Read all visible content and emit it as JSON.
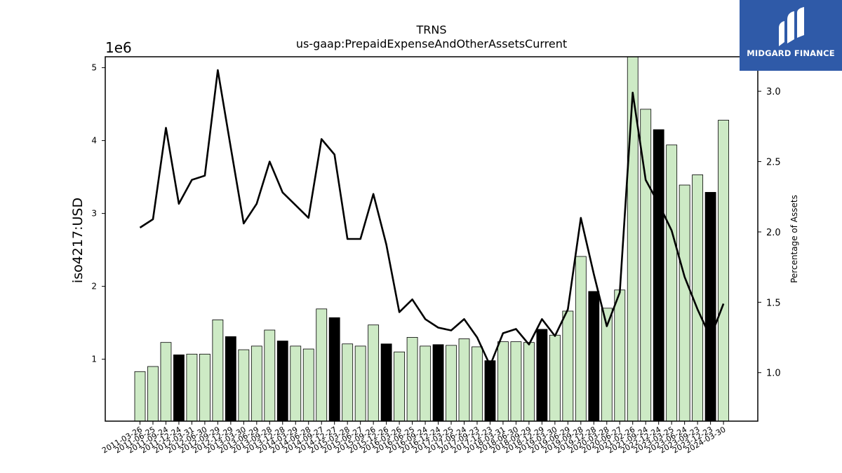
{
  "chart_data": {
    "type": "bar",
    "title": "TRNS",
    "subtitle": "us-gaap:PrepaidExpenseAndOtherAssetsCurrent",
    "ylabel": "iso4217:USD",
    "y_offset_label": "1e6",
    "y2label": "Percentage of Assets",
    "ylim": [
      150000,
      5150000
    ],
    "y2lim": [
      0.655,
      3.245
    ],
    "yticks": [
      1,
      2,
      3,
      4,
      5
    ],
    "y2ticks": [
      "1.0",
      "1.5",
      "2.0",
      "2.5",
      "3.0"
    ],
    "colors": {
      "bar_light": "#cdeac5",
      "bar_dark": "#000000",
      "line": "#000000"
    },
    "categories": [
      "2011-03-26",
      "2011-06-25",
      "2011-09-24",
      "2011-12-24",
      "2012-03-31",
      "2012-06-30",
      "2012-09-29",
      "2012-12-29",
      "2013-03-30",
      "2013-06-29",
      "2013-09-28",
      "2013-12-28",
      "2014-03-29",
      "2014-06-28",
      "2014-09-27",
      "2014-12-27",
      "2015-03-28",
      "2015-06-27",
      "2015-09-26",
      "2015-12-26",
      "2016-03-26",
      "2016-06-25",
      "2016-09-24",
      "2016-12-24",
      "2017-03-25",
      "2017-06-24",
      "2017-09-23",
      "2017-12-23",
      "2018-03-31",
      "2018-06-30",
      "2018-09-29",
      "2018-12-29",
      "2019-03-30",
      "2019-06-29",
      "2019-09-28",
      "2019-12-28",
      "2020-03-28",
      "2020-06-27",
      "2021-02-26",
      "2021-09-24",
      "2022-12-24",
      "2023-03-25",
      "2023-06-24",
      "2023-09-23",
      "2023-12-23",
      "2024-03-30"
    ],
    "values": [
      830000,
      900000,
      1230000,
      1060000,
      1070000,
      1070000,
      1540000,
      1310000,
      1130000,
      1180000,
      1400000,
      1250000,
      1180000,
      1140000,
      1690000,
      1570000,
      1210000,
      1180000,
      1470000,
      1210000,
      1100000,
      1300000,
      1180000,
      1200000,
      1190000,
      1280000,
      1170000,
      980000,
      1240000,
      1240000,
      1230000,
      1410000,
      1330000,
      1660000,
      2410000,
      1930000,
      1700000,
      1950000,
      5200000,
      4430000,
      4150000,
      3940000,
      3390000,
      3530000,
      3290000,
      4280000
    ],
    "dark": [
      false,
      false,
      false,
      true,
      false,
      false,
      false,
      true,
      false,
      false,
      false,
      true,
      false,
      false,
      false,
      true,
      false,
      false,
      false,
      true,
      false,
      false,
      false,
      true,
      false,
      false,
      false,
      true,
      false,
      false,
      false,
      true,
      false,
      false,
      false,
      true,
      false,
      false,
      false,
      false,
      true,
      false,
      false,
      false,
      true,
      false
    ],
    "percent_of_assets": [
      2.03,
      2.09,
      2.74,
      2.2,
      2.37,
      2.4,
      3.15,
      2.6,
      2.06,
      2.2,
      2.5,
      2.28,
      2.19,
      2.1,
      2.66,
      2.55,
      1.95,
      1.95,
      2.27,
      1.91,
      1.43,
      1.52,
      1.38,
      1.32,
      1.3,
      1.38,
      1.25,
      1.05,
      1.28,
      1.31,
      1.2,
      1.38,
      1.26,
      1.45,
      2.1,
      1.7,
      1.33,
      1.57,
      2.99,
      2.37,
      2.2,
      2.01,
      1.68,
      1.45,
      1.25,
      1.49
    ]
  },
  "logo": {
    "text": "MIDGARD FINANCE"
  }
}
